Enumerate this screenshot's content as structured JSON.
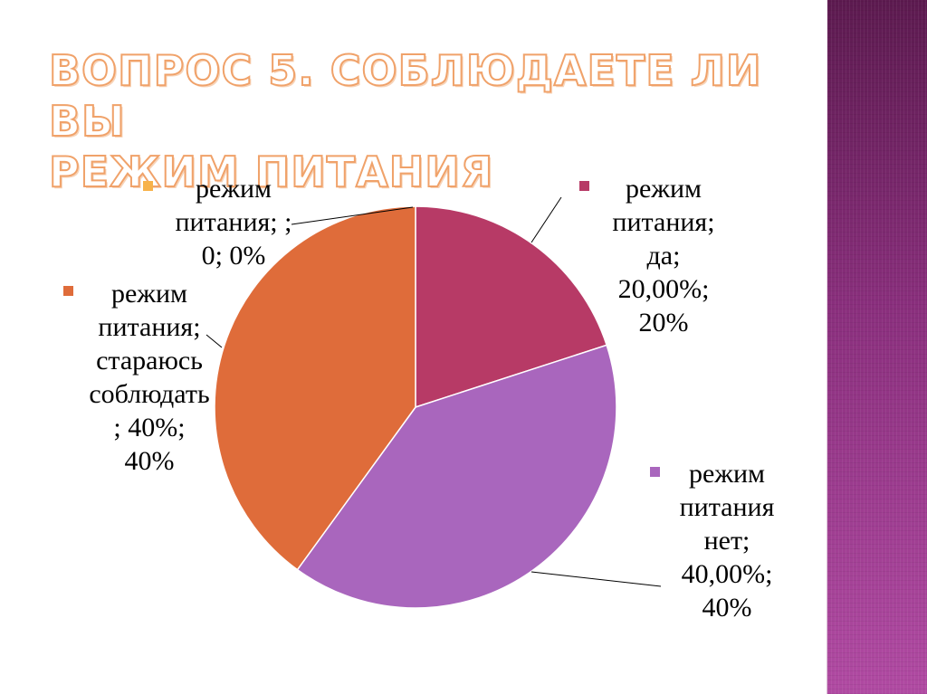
{
  "slide": {
    "title_line1": "ВОПРОС 5. СОБЛЮДАЕТЕ ЛИ ВЫ",
    "title_line2": "РЕЖИМ ПИТАНИЯ",
    "accent_color": "#f0a26a",
    "side_band_color": "#8a2f7d"
  },
  "chart_data": {
    "type": "pie",
    "title": "",
    "series_name": "режим питания",
    "slices": [
      {
        "category": "",
        "value": 0,
        "percent_label": "0%",
        "color": "#f7b24a",
        "label_lines": [
          "режим",
          "питания; ;",
          "0; 0%"
        ]
      },
      {
        "category": "да",
        "value": 20,
        "percent_label": "20%",
        "value_label": "20,00%",
        "color": "#b73a66",
        "label_lines": [
          "режим",
          "питания;",
          "да;",
          "20,00%;",
          "20%"
        ]
      },
      {
        "category": "нет",
        "value": 40,
        "percent_label": "40%",
        "value_label": "40,00%",
        "color": "#a966bd",
        "label_lines": [
          "режим",
          "питания",
          "нет;",
          "40,00%;",
          "40%"
        ]
      },
      {
        "category": "стараюсь соблюдать",
        "value": 40,
        "percent_label": "40%",
        "color": "#df6c3a",
        "label_lines": [
          "режим",
          "питания;",
          "стараюсь",
          "соблюдать",
          "; 40%;",
          "40%"
        ]
      }
    ],
    "legend": "none",
    "data_labels": "outside with leader lines"
  }
}
